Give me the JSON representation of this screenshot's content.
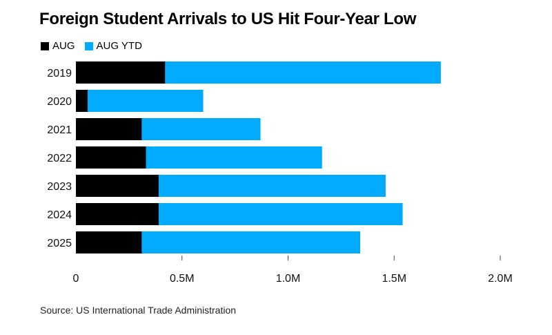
{
  "chart_data": {
    "type": "bar",
    "orientation": "horizontal",
    "stacked": "overlay",
    "title": "Foreign Student Arrivals to US Hit Four-Year Low",
    "categories": [
      "2019",
      "2020",
      "2021",
      "2022",
      "2023",
      "2024",
      "2025"
    ],
    "series": [
      {
        "name": "AUG YTD",
        "color": "#00aaff",
        "values": [
          1.72,
          0.6,
          0.87,
          1.16,
          1.46,
          1.54,
          1.34
        ]
      },
      {
        "name": "AUG",
        "color": "#000000",
        "values": [
          0.42,
          0.055,
          0.31,
          0.33,
          0.39,
          0.39,
          0.31
        ]
      }
    ],
    "xlim": [
      0,
      2.0
    ],
    "x_ticks": [
      0,
      0.5,
      1.0,
      1.5,
      2.0
    ],
    "x_tick_labels": [
      "0",
      "0.5M",
      "1.0M",
      "1.5M",
      "2.0M"
    ],
    "xlabel": "",
    "ylabel": "",
    "legend": [
      {
        "label": "AUG",
        "color": "#000000"
      },
      {
        "label": "AUG YTD",
        "color": "#00aaff"
      }
    ],
    "legend_position": "top-left",
    "grid": false,
    "source": "Source: US International Trade Administration"
  }
}
